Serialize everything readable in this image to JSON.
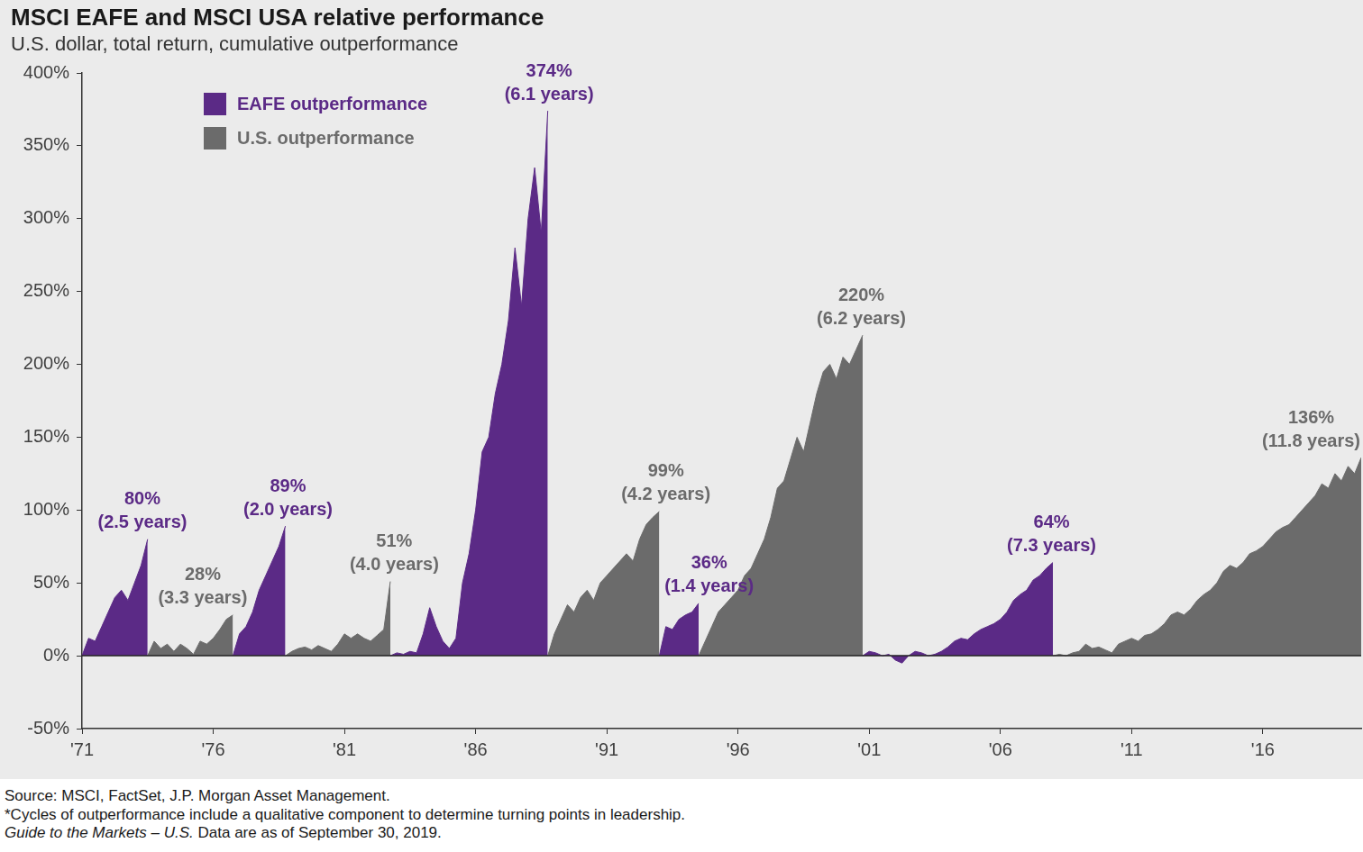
{
  "chart_data": {
    "type": "area",
    "title": "MSCI EAFE and MSCI USA relative performance",
    "subtitle": "U.S. dollar, total return, cumulative outperformance",
    "x": [
      1971,
      1971.25,
      1971.5,
      1971.75,
      1972,
      1972.25,
      1972.5,
      1972.75,
      1973,
      1973.25,
      1973.5,
      1973.75,
      1974,
      1974.25,
      1974.5,
      1974.75,
      1975,
      1975.25,
      1975.5,
      1975.75,
      1976,
      1976.25,
      1976.5,
      1976.75,
      1977,
      1977.25,
      1977.5,
      1977.75,
      1978,
      1978.25,
      1978.5,
      1978.75,
      1979,
      1979.25,
      1979.5,
      1979.75,
      1980,
      1980.25,
      1980.5,
      1980.75,
      1981,
      1981.25,
      1981.5,
      1981.75,
      1982,
      1982.25,
      1982.5,
      1982.75,
      1983,
      1983.25,
      1983.5,
      1983.75,
      1984,
      1984.25,
      1984.5,
      1984.75,
      1985,
      1985.25,
      1985.5,
      1985.75,
      1986,
      1986.25,
      1986.5,
      1986.75,
      1987,
      1987.25,
      1987.5,
      1987.75,
      1988,
      1988.25,
      1988.5,
      1988.75,
      1989,
      1989.25,
      1989.5,
      1989.75,
      1990,
      1990.25,
      1990.5,
      1990.75,
      1991,
      1991.25,
      1991.5,
      1991.75,
      1992,
      1992.25,
      1992.5,
      1992.75,
      1993,
      1993.25,
      1993.5,
      1993.75,
      1994,
      1994.25,
      1994.5,
      1994.75,
      1995,
      1995.25,
      1995.5,
      1995.75,
      1996,
      1996.25,
      1996.5,
      1996.75,
      1997,
      1997.25,
      1997.5,
      1997.75,
      1998,
      1998.25,
      1998.5,
      1998.75,
      1999,
      1999.25,
      1999.5,
      1999.75,
      2000,
      2000.25,
      2000.5,
      2000.75,
      2001,
      2001.25,
      2001.5,
      2001.75,
      2002,
      2002.25,
      2002.5,
      2002.75,
      2003,
      2003.25,
      2003.5,
      2003.75,
      2004,
      2004.25,
      2004.5,
      2004.75,
      2005,
      2005.25,
      2005.5,
      2005.75,
      2006,
      2006.25,
      2006.5,
      2006.75,
      2007,
      2007.25,
      2007.5,
      2007.75,
      2008,
      2008.25,
      2008.5,
      2008.75,
      2009,
      2009.25,
      2009.5,
      2009.75,
      2010,
      2010.25,
      2010.5,
      2010.75,
      2011,
      2011.25,
      2011.5,
      2011.75,
      2012,
      2012.25,
      2012.5,
      2012.75,
      2013,
      2013.25,
      2013.5,
      2013.75,
      2014,
      2014.25,
      2014.5,
      2014.75,
      2015,
      2015.25,
      2015.5,
      2015.75,
      2016,
      2016.25,
      2016.5,
      2016.75,
      2017,
      2017.25,
      2017.5,
      2017.75,
      2018,
      2018.25,
      2018.5,
      2018.75,
      2019,
      2019.25,
      2019.5,
      2019.75
    ],
    "series": [
      {
        "name": "EAFE outperformance",
        "color": "#5b2a86",
        "values": [
          0,
          12,
          10,
          20,
          30,
          40,
          45,
          38,
          50,
          62,
          80,
          null,
          null,
          null,
          null,
          null,
          null,
          null,
          null,
          null,
          null,
          null,
          null,
          0,
          15,
          20,
          30,
          45,
          55,
          65,
          75,
          89,
          null,
          null,
          null,
          null,
          null,
          null,
          null,
          null,
          null,
          null,
          null,
          null,
          null,
          null,
          null,
          0,
          2,
          1,
          3,
          2,
          15,
          33,
          20,
          10,
          5,
          12,
          50,
          70,
          100,
          140,
          150,
          180,
          200,
          230,
          280,
          240,
          300,
          335,
          290,
          374,
          null,
          null,
          null,
          null,
          null,
          null,
          null,
          null,
          null,
          null,
          null,
          null,
          null,
          null,
          null,
          null,
          0,
          20,
          18,
          25,
          28,
          30,
          36,
          null,
          null,
          null,
          null,
          null,
          null,
          null,
          null,
          null,
          null,
          null,
          null,
          null,
          null,
          null,
          null,
          null,
          null,
          null,
          null,
          null,
          null,
          null,
          null,
          0,
          3,
          2,
          0,
          1,
          -3,
          -5,
          0,
          3,
          2,
          0,
          1,
          3,
          6,
          10,
          12,
          11,
          15,
          18,
          20,
          22,
          25,
          30,
          38,
          42,
          45,
          52,
          55,
          60,
          64,
          null,
          null,
          null,
          null,
          null,
          null,
          null,
          null,
          null,
          null,
          null,
          null,
          null,
          null,
          null,
          null,
          null,
          null,
          null,
          null,
          null,
          null,
          null,
          null,
          null,
          null,
          null,
          null,
          null,
          null,
          null,
          null,
          null,
          null,
          null,
          null,
          null,
          null,
          null,
          null,
          null,
          null,
          null,
          null,
          null,
          null,
          null
        ]
      },
      {
        "name": "U.S. outperformance",
        "color": "#6b6b6b",
        "values": [
          null,
          null,
          null,
          null,
          null,
          null,
          null,
          null,
          null,
          null,
          0,
          10,
          5,
          8,
          3,
          8,
          5,
          1,
          10,
          8,
          12,
          18,
          25,
          28,
          null,
          null,
          null,
          null,
          null,
          null,
          null,
          0,
          3,
          5,
          6,
          4,
          7,
          5,
          3,
          8,
          15,
          12,
          15,
          12,
          10,
          14,
          18,
          51,
          null,
          null,
          null,
          null,
          null,
          null,
          null,
          null,
          null,
          null,
          null,
          null,
          null,
          null,
          null,
          null,
          null,
          null,
          null,
          null,
          null,
          null,
          null,
          0,
          15,
          25,
          35,
          30,
          40,
          45,
          38,
          50,
          55,
          60,
          65,
          70,
          65,
          80,
          90,
          95,
          99,
          null,
          null,
          null,
          null,
          null,
          0,
          10,
          20,
          30,
          35,
          40,
          45,
          55,
          60,
          70,
          80,
          95,
          115,
          120,
          135,
          150,
          140,
          160,
          180,
          195,
          200,
          190,
          205,
          200,
          210,
          220,
          null,
          null,
          null,
          null,
          null,
          null,
          null,
          null,
          null,
          null,
          null,
          null,
          null,
          null,
          null,
          null,
          null,
          null,
          null,
          null,
          null,
          null,
          null,
          null,
          null,
          null,
          null,
          null,
          0,
          1,
          0,
          2,
          3,
          8,
          5,
          6,
          4,
          2,
          8,
          10,
          12,
          10,
          14,
          15,
          18,
          22,
          28,
          30,
          28,
          32,
          38,
          42,
          45,
          50,
          58,
          62,
          60,
          64,
          70,
          72,
          75,
          80,
          85,
          88,
          90,
          95,
          100,
          105,
          110,
          118,
          115,
          125,
          120,
          130,
          125,
          136
        ]
      }
    ],
    "xlim": [
      1971,
      2019.75
    ],
    "xticks": [
      {
        "value": 1971,
        "label": "'71"
      },
      {
        "value": 1976,
        "label": "'76"
      },
      {
        "value": 1981,
        "label": "'81"
      },
      {
        "value": 1986,
        "label": "'86"
      },
      {
        "value": 1991,
        "label": "'91"
      },
      {
        "value": 1996,
        "label": "'96"
      },
      {
        "value": 2001,
        "label": "'01"
      },
      {
        "value": 2006,
        "label": "'06"
      },
      {
        "value": 2011,
        "label": "'11"
      },
      {
        "value": 2016,
        "label": "'16"
      }
    ],
    "ylim": [
      -50,
      400
    ],
    "yticks": [
      {
        "value": -50,
        "label": "-50%"
      },
      {
        "value": 0,
        "label": "0%"
      },
      {
        "value": 50,
        "label": "50%"
      },
      {
        "value": 100,
        "label": "100%"
      },
      {
        "value": 150,
        "label": "150%"
      },
      {
        "value": 200,
        "label": "200%"
      },
      {
        "value": 250,
        "label": "250%"
      },
      {
        "value": 300,
        "label": "300%"
      },
      {
        "value": 350,
        "label": "350%"
      },
      {
        "value": 400,
        "label": "400%"
      }
    ],
    "grid": false,
    "legend": "upper left",
    "annotations": [
      {
        "text": [
          "80%",
          "(2.5 years)"
        ],
        "series": "EAFE outperformance",
        "x": 1973.3,
        "y": 80
      },
      {
        "text": [
          "28%",
          "(3.3 years)"
        ],
        "series": "U.S. outperformance",
        "x": 1975.6,
        "y": 28
      },
      {
        "text": [
          "89%",
          "(2.0 years)"
        ],
        "series": "EAFE outperformance",
        "x": 1978.85,
        "y": 89
      },
      {
        "text": [
          "51%",
          "(4.0 years)"
        ],
        "series": "U.S. outperformance",
        "x": 1982.9,
        "y": 51
      },
      {
        "text": [
          "374%",
          "(6.1 years)"
        ],
        "series": "EAFE outperformance",
        "x": 1988.8,
        "y": 374
      },
      {
        "text": [
          "99%",
          "(4.2 years)"
        ],
        "series": "U.S. outperformance",
        "x": 1993.25,
        "y": 99
      },
      {
        "text": [
          "36%",
          "(1.4 years)"
        ],
        "series": "EAFE outperformance",
        "x": 1994.9,
        "y": 36
      },
      {
        "text": [
          "220%",
          "(6.2 years)"
        ],
        "series": "U.S. outperformance",
        "x": 2000.7,
        "y": 220
      },
      {
        "text": [
          "64%",
          "(7.3 years)"
        ],
        "series": "EAFE outperformance",
        "x": 2007.95,
        "y": 64
      },
      {
        "text": [
          "136%",
          "(11.8 years)"
        ],
        "series": "U.S. outperformance",
        "x": 2019.75,
        "y": 136
      }
    ],
    "notes": [
      "Source: MSCI, FactSet, J.P. Morgan Asset Management.",
      "*Cycles of outperformance include a qualitative component to determine turning points in leadership."
    ],
    "footer": {
      "italic": "Guide to the Markets – U.S.",
      "text": "Data are as of September 30, 2019."
    }
  }
}
